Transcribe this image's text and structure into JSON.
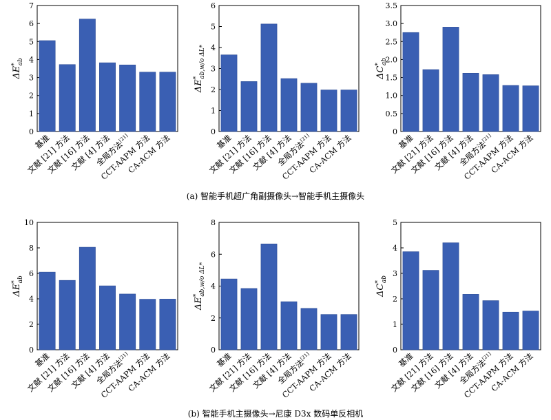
{
  "captions": {
    "a": "(a) 智能手机超广角副摄像头→智能手机主摄像头",
    "b": "(b) 智能手机主摄像头→尼康 D3x 数码单反相机"
  },
  "colors": {
    "bar": "#3a5fb3",
    "bar_edge": "#2d4d96",
    "axis": "#000000"
  },
  "chart_data": [
    {
      "id": "a1",
      "type": "bar",
      "ylabel": "ΔE*ab",
      "categories": [
        "基准",
        "文献 [21] 方法",
        "文献 [16] 方法",
        "文献 [4] 方法",
        "全局方法[21]",
        "CCT-AAPM 方法",
        "CA-ACM 方法"
      ],
      "values": [
        5.05,
        3.72,
        6.25,
        3.82,
        3.7,
        3.3,
        3.3
      ],
      "ylim": [
        0,
        7
      ],
      "yticks": [
        0,
        1,
        2,
        3,
        4,
        5,
        6,
        7
      ]
    },
    {
      "id": "a2",
      "type": "bar",
      "ylabel": "ΔE*ab,w/o ΔL*",
      "categories": [
        "基准",
        "文献 [21] 方法",
        "文献 [16] 方法",
        "文献 [4] 方法",
        "全局方法[21]",
        "CCT-AAPM 方法",
        "CA-ACM 方法"
      ],
      "values": [
        3.65,
        2.38,
        5.12,
        2.52,
        2.3,
        1.98,
        1.98
      ],
      "ylim": [
        0,
        6
      ],
      "yticks": [
        0,
        1,
        2,
        3,
        4,
        5,
        6
      ]
    },
    {
      "id": "a3",
      "type": "bar",
      "ylabel": "ΔC*ab",
      "categories": [
        "基准",
        "文献 [21] 方法",
        "文献 [16] 方法",
        "文献 [4] 方法",
        "全局方法[21]",
        "CCT-AAPM 方法",
        "CA-ACM 方法"
      ],
      "values": [
        2.75,
        1.72,
        2.9,
        1.62,
        1.58,
        1.28,
        1.27
      ],
      "ylim": [
        0,
        3.5
      ],
      "yticks": [
        0,
        0.5,
        1,
        1.5,
        2,
        2.5,
        3,
        3.5
      ],
      "ytick_labels": [
        "0",
        "0.5",
        "1.0",
        "1.5",
        "2.0",
        "2.5",
        "3.0",
        "3.5"
      ]
    },
    {
      "id": "b1",
      "type": "bar",
      "ylabel": "ΔE*ab",
      "categories": [
        "基准",
        "文献 [21] 方法",
        "文献 [16] 方法",
        "文献 [4] 方法",
        "全局方法[21]",
        "CCT-AAPM 方法",
        "CA-ACM 方法"
      ],
      "values": [
        6.1,
        5.45,
        8.05,
        5.02,
        4.38,
        3.97,
        3.98
      ],
      "ylim": [
        0,
        10
      ],
      "yticks": [
        0,
        2,
        4,
        6,
        8,
        10
      ]
    },
    {
      "id": "b2",
      "type": "bar",
      "ylabel": "ΔE*ab,w/o ΔL*",
      "categories": [
        "基准",
        "文献 [21] 方法",
        "文献 [16] 方法",
        "文献 [4] 方法",
        "全局方法[21]",
        "CCT-AAPM 方法",
        "CA-ACM 方法"
      ],
      "values": [
        4.45,
        3.85,
        6.65,
        3.02,
        2.6,
        2.22,
        2.22
      ],
      "ylim": [
        0,
        8
      ],
      "yticks": [
        0,
        2,
        4,
        6,
        8
      ]
    },
    {
      "id": "b3",
      "type": "bar",
      "ylabel": "ΔC*ab",
      "categories": [
        "基准",
        "文献 [21] 方法",
        "文献 [16] 方法",
        "文献 [4] 方法",
        "全局方法[21]",
        "CCT-AAPM 方法",
        "CA-ACM 方法"
      ],
      "values": [
        3.85,
        3.12,
        4.2,
        2.18,
        1.93,
        1.48,
        1.52
      ],
      "ylim": [
        0,
        5
      ],
      "yticks": [
        0,
        1,
        2,
        3,
        4,
        5
      ]
    }
  ]
}
